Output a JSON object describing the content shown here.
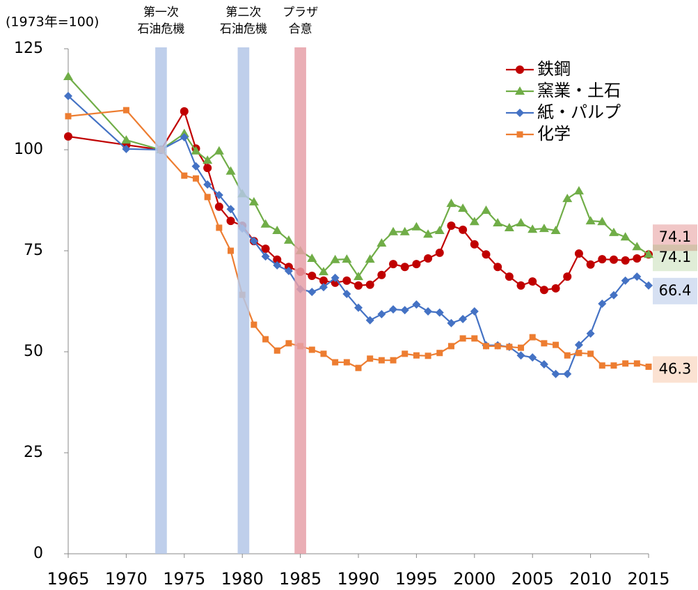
{
  "chart_data": {
    "type": "line",
    "ylabel": "(1973年=100)",
    "x": [
      1965,
      1970,
      1973,
      1975,
      1976,
      1977,
      1978,
      1979,
      1980,
      1981,
      1982,
      1983,
      1984,
      1985,
      1986,
      1987,
      1988,
      1989,
      1990,
      1991,
      1992,
      1993,
      1994,
      1995,
      1996,
      1997,
      1998,
      1999,
      2000,
      2001,
      2002,
      2003,
      2004,
      2005,
      2006,
      2007,
      2008,
      2009,
      2010,
      2011,
      2012,
      2013,
      2014,
      2015
    ],
    "series": [
      {
        "name": "鉄鋼",
        "color": "#c00000",
        "marker": "circle",
        "values": [
          103.3,
          101.2,
          100,
          109.5,
          100.3,
          95.5,
          85.9,
          82.4,
          81.2,
          77.4,
          75.5,
          72.8,
          71.0,
          69.8,
          68.8,
          67.6,
          67.1,
          67.6,
          66.4,
          66.6,
          69.0,
          71.7,
          71.0,
          71.7,
          73.1,
          74.5,
          81.2,
          80.2,
          76.6,
          74.1,
          71.0,
          68.6,
          66.4,
          67.4,
          65.3,
          65.7,
          68.6,
          74.3,
          71.6,
          72.9,
          72.8,
          72.6,
          73.1,
          74.1
        ]
      },
      {
        "name": "窯業・土石",
        "color": "#70ad47",
        "marker": "triangle",
        "values": [
          118.1,
          102.4,
          100,
          104.0,
          99.7,
          97.4,
          99.7,
          94.7,
          89.1,
          87.1,
          81.6,
          80.0,
          77.6,
          75.0,
          73.1,
          69.8,
          72.8,
          72.9,
          68.6,
          72.9,
          76.9,
          79.7,
          79.7,
          80.9,
          79.1,
          80.0,
          86.7,
          85.5,
          82.2,
          85.0,
          81.9,
          80.7,
          81.9,
          80.3,
          80.5,
          80.0,
          87.9,
          89.8,
          82.4,
          82.2,
          79.5,
          78.4,
          76.0,
          74.1
        ]
      },
      {
        "name": "紙・パルプ",
        "color": "#4472c4",
        "marker": "diamond",
        "values": [
          113.3,
          100.2,
          100,
          103.1,
          95.9,
          91.4,
          88.8,
          85.3,
          80.5,
          77.4,
          73.6,
          71.4,
          70.0,
          65.5,
          64.8,
          66.0,
          68.3,
          64.3,
          60.9,
          57.8,
          59.3,
          60.5,
          60.3,
          61.7,
          60.0,
          59.7,
          57.1,
          58.1,
          60.0,
          51.6,
          51.6,
          51.2,
          49.1,
          48.6,
          46.9,
          44.5,
          44.5,
          51.7,
          54.5,
          61.9,
          64.0,
          67.6,
          68.6,
          66.4
        ]
      },
      {
        "name": "化学",
        "color": "#ed7d31",
        "marker": "square",
        "values": [
          108.3,
          109.8,
          100,
          93.6,
          92.9,
          88.3,
          80.7,
          75.0,
          64.1,
          56.7,
          53.1,
          50.3,
          52.1,
          51.4,
          50.5,
          49.5,
          47.4,
          47.4,
          46.0,
          48.3,
          47.9,
          47.9,
          49.5,
          49.1,
          49.0,
          49.7,
          51.4,
          53.3,
          53.3,
          51.4,
          51.4,
          51.2,
          51.0,
          53.6,
          52.1,
          51.7,
          49.1,
          49.7,
          49.5,
          46.6,
          46.6,
          47.1,
          47.1,
          46.3
        ]
      }
    ],
    "bands": [
      {
        "label": [
          "第一次",
          "石油危機"
        ],
        "x": [
          1972.5,
          1973.5
        ],
        "color": "#b4c7e7"
      },
      {
        "label": [
          "第二次",
          "石油危機"
        ],
        "x": [
          1979.6,
          1980.6
        ],
        "color": "#b4c7e7"
      },
      {
        "label": [
          "プラザ",
          "合意"
        ],
        "x": [
          1984.5,
          1985.5
        ],
        "color": "#e6a0a8"
      }
    ],
    "xlim": [
      1965,
      2015
    ],
    "xticks": [
      1965,
      1970,
      1975,
      1980,
      1985,
      1990,
      1995,
      2000,
      2005,
      2010,
      2015
    ],
    "ylim": [
      0,
      125
    ],
    "yticks": [
      0,
      25,
      50,
      75,
      100,
      125
    ],
    "legend": "upper right"
  }
}
